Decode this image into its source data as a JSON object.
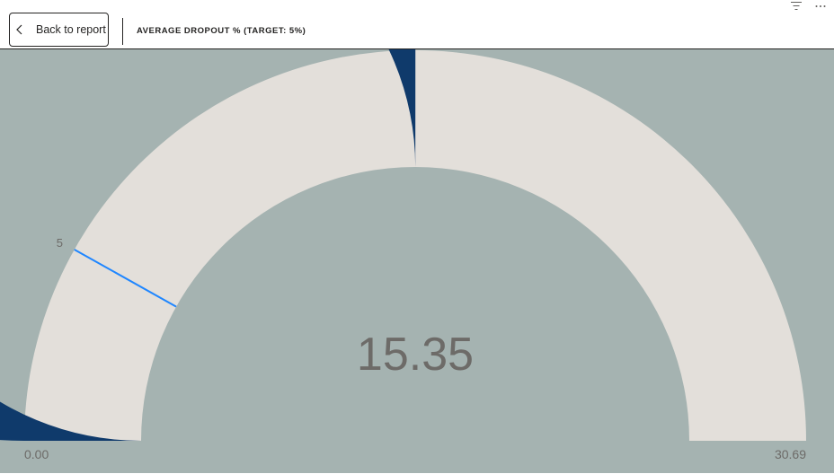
{
  "toolbar": {
    "back_label": "Back to report",
    "title": "AVERAGE DROPOUT % (TARGET: 5%)",
    "filter_icon": "filter-icon",
    "more_icon": "more-options-icon"
  },
  "chart_data": {
    "type": "gauge",
    "value": 15.35,
    "value_label": "15.35",
    "min": 0,
    "max": 30.69,
    "min_label": "0.00",
    "max_label": "30.69",
    "target": 5,
    "target_label": "5",
    "colors": {
      "fill": "#0f3a6b",
      "track": "#e3dfda",
      "target": "#1f86ff",
      "background": "#a5b3b1",
      "text": "#6d6b68"
    }
  }
}
